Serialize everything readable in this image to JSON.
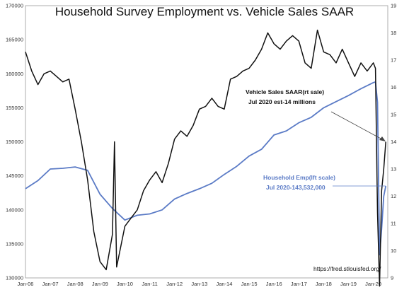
{
  "chart_data": {
    "type": "line",
    "title": "Household Survey Employment vs. Vehicle Sales SAAR",
    "x_ticks": [
      "Jan-06",
      "Jan-07",
      "Jan-08",
      "Jan-09",
      "Jan-10",
      "Jan-11",
      "Jan-12",
      "Jan-13",
      "Jan-14",
      "Jan-15",
      "Jan-16",
      "Jan-17",
      "Jan-18",
      "Jan-19",
      "Jan-20"
    ],
    "y_left": {
      "min": 130000,
      "max": 170000,
      "ticks": [
        "130000",
        "135000",
        "140000",
        "145000",
        "150000",
        "155000",
        "160000",
        "165000",
        "170000"
      ]
    },
    "y_right": {
      "min": 9,
      "max": 19,
      "ticks": [
        "9",
        "10",
        "11",
        "12",
        "13",
        "14",
        "15",
        "16",
        "17",
        "18",
        "19"
      ]
    },
    "series": [
      {
        "name": "Vehicle Sales SAAR",
        "axis": "right",
        "color": "#111111",
        "points": [
          [
            "2006-01",
            17.3
          ],
          [
            "2006-04",
            16.6
          ],
          [
            "2006-07",
            16.1
          ],
          [
            "2006-10",
            16.5
          ],
          [
            "2007-01",
            16.6
          ],
          [
            "2007-04",
            16.4
          ],
          [
            "2007-07",
            16.2
          ],
          [
            "2007-10",
            16.3
          ],
          [
            "2008-01",
            15.2
          ],
          [
            "2008-04",
            14.0
          ],
          [
            "2008-07",
            12.6
          ],
          [
            "2008-10",
            10.7
          ],
          [
            "2009-01",
            9.6
          ],
          [
            "2009-04",
            9.3
          ],
          [
            "2009-07",
            10.6
          ],
          [
            "2009-08",
            14.0
          ],
          [
            "2009-09",
            9.4
          ],
          [
            "2010-01",
            10.9
          ],
          [
            "2010-04",
            11.2
          ],
          [
            "2010-07",
            11.5
          ],
          [
            "2010-10",
            12.2
          ],
          [
            "2011-01",
            12.6
          ],
          [
            "2011-04",
            12.9
          ],
          [
            "2011-07",
            12.5
          ],
          [
            "2011-10",
            13.2
          ],
          [
            "2012-01",
            14.1
          ],
          [
            "2012-04",
            14.4
          ],
          [
            "2012-07",
            14.2
          ],
          [
            "2012-10",
            14.6
          ],
          [
            "2013-01",
            15.2
          ],
          [
            "2013-04",
            15.3
          ],
          [
            "2013-07",
            15.6
          ],
          [
            "2013-10",
            15.3
          ],
          [
            "2014-01",
            15.2
          ],
          [
            "2014-04",
            16.3
          ],
          [
            "2014-07",
            16.4
          ],
          [
            "2014-10",
            16.6
          ],
          [
            "2015-01",
            16.7
          ],
          [
            "2015-04",
            17.0
          ],
          [
            "2015-07",
            17.4
          ],
          [
            "2015-10",
            18.0
          ],
          [
            "2016-01",
            17.6
          ],
          [
            "2016-04",
            17.4
          ],
          [
            "2016-07",
            17.7
          ],
          [
            "2016-10",
            17.9
          ],
          [
            "2017-01",
            17.7
          ],
          [
            "2017-04",
            16.9
          ],
          [
            "2017-07",
            16.7
          ],
          [
            "2017-10",
            18.1
          ],
          [
            "2018-01",
            17.3
          ],
          [
            "2018-04",
            17.2
          ],
          [
            "2018-07",
            16.9
          ],
          [
            "2018-10",
            17.4
          ],
          [
            "2019-01",
            16.9
          ],
          [
            "2019-04",
            16.4
          ],
          [
            "2019-07",
            16.9
          ],
          [
            "2019-10",
            16.6
          ],
          [
            "2020-01",
            16.9
          ],
          [
            "2020-02",
            16.7
          ],
          [
            "2020-03",
            11.4
          ],
          [
            "2020-04",
            8.7
          ],
          [
            "2020-05",
            12.2
          ],
          [
            "2020-06",
            13.0
          ],
          [
            "2020-07",
            14.0
          ]
        ]
      },
      {
        "name": "Household Emp",
        "axis": "left",
        "color": "#5b7bc6",
        "points": [
          [
            "2006-01",
            143100
          ],
          [
            "2006-07",
            144300
          ],
          [
            "2007-01",
            146000
          ],
          [
            "2007-07",
            146100
          ],
          [
            "2008-01",
            146300
          ],
          [
            "2008-07",
            145800
          ],
          [
            "2009-01",
            142300
          ],
          [
            "2009-07",
            140200
          ],
          [
            "2010-01",
            138500
          ],
          [
            "2010-07",
            139200
          ],
          [
            "2011-01",
            139400
          ],
          [
            "2011-07",
            140000
          ],
          [
            "2012-01",
            141600
          ],
          [
            "2012-07",
            142400
          ],
          [
            "2013-01",
            143100
          ],
          [
            "2013-07",
            143900
          ],
          [
            "2014-01",
            145200
          ],
          [
            "2014-07",
            146400
          ],
          [
            "2015-01",
            147900
          ],
          [
            "2015-07",
            148900
          ],
          [
            "2016-01",
            151000
          ],
          [
            "2016-07",
            151600
          ],
          [
            "2017-01",
            152800
          ],
          [
            "2017-07",
            153600
          ],
          [
            "2018-01",
            155000
          ],
          [
            "2018-07",
            155900
          ],
          [
            "2019-01",
            156800
          ],
          [
            "2019-07",
            157800
          ],
          [
            "2020-01",
            158700
          ],
          [
            "2020-02",
            158800
          ],
          [
            "2020-03",
            155800
          ],
          [
            "2020-04",
            133400
          ],
          [
            "2020-05",
            137200
          ],
          [
            "2020-06",
            142000
          ],
          [
            "2020-07",
            143500
          ]
        ]
      }
    ],
    "annotations": {
      "vehicle_line1": "Vehicle Sales SAAR(rt sale)",
      "vehicle_line2": "Jul 2020 est-14  millions",
      "emp_line1": "Household Emp(lft scale)",
      "emp_line2": "Jul 2020-143,532,000",
      "source": "https://fred.stlouisfed.org/"
    }
  }
}
